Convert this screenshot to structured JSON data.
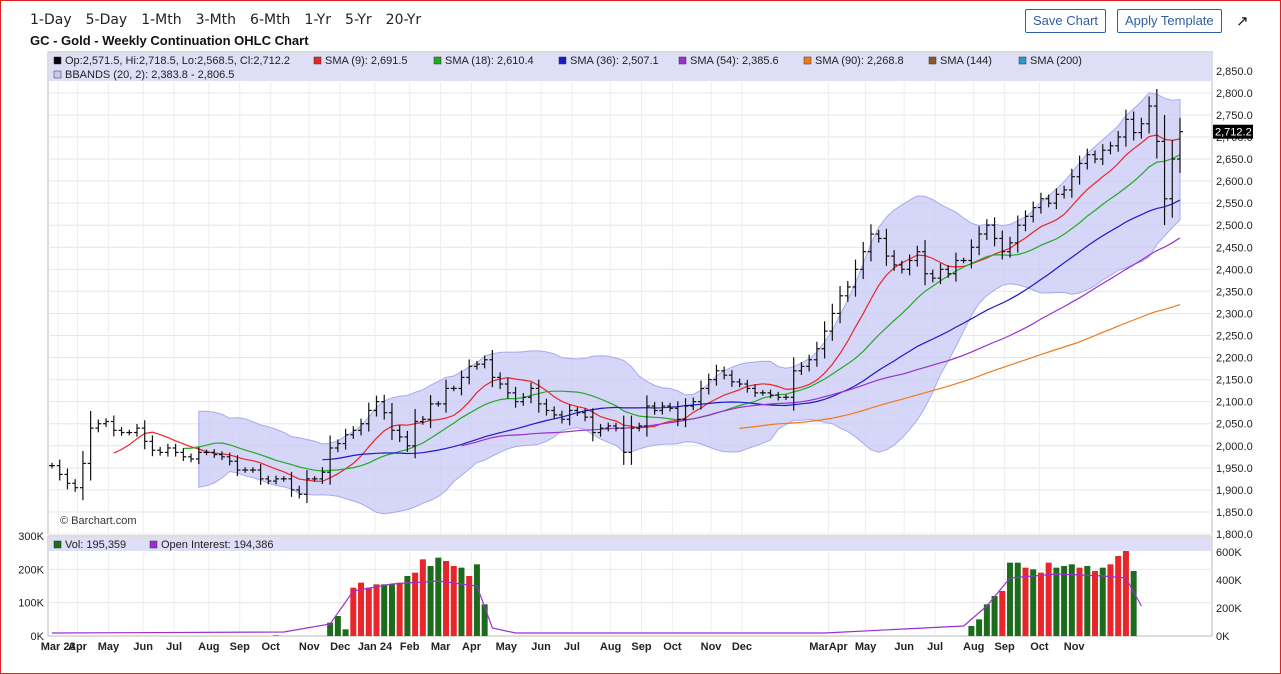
{
  "toolbar": {
    "timeframes": [
      "1-Day",
      "5-Day",
      "1-Mth",
      "3-Mth",
      "6-Mth",
      "1-Yr",
      "5-Yr",
      "20-Yr"
    ],
    "save_chart": "Save Chart",
    "apply_template": "Apply Template"
  },
  "title": "GC - Gold - Weekly Continuation OHLC Chart",
  "watermark": "© Barchart.com",
  "legend": [
    {
      "label": "Op:2,571.5, Hi:2,718.5, Lo:2,568.5, Cl:2,712.2",
      "color": "#000000"
    },
    {
      "label": "SMA (9): 2,691.5",
      "color": "#e8262a"
    },
    {
      "label": "SMA (18): 2,610.4",
      "color": "#22aa22"
    },
    {
      "label": "SMA (36): 2,507.1",
      "color": "#1a1acc"
    },
    {
      "label": "SMA (54): 2,385.6",
      "color": "#9b2fd1"
    },
    {
      "label": "SMA (90): 2,268.8",
      "color": "#f07a1a"
    },
    {
      "label": "SMA (144)",
      "color": "#8b5a2b"
    },
    {
      "label": "SMA (200)",
      "color": "#2a9ad0"
    },
    {
      "label": "BBANDS (20, 2): 2,383.8 - 2,806.5",
      "color": "#c8c8f5"
    }
  ],
  "volume_legend": [
    {
      "label": "Vol: 195,359",
      "color": "#1d6b1d"
    },
    {
      "label": "Open Interest: 194,386",
      "color": "#9b2fd1"
    }
  ],
  "last_price_label": "2,712.2",
  "chart_data": {
    "type": "ohlc",
    "ylim": [
      1800,
      2870
    ],
    "yticks": [
      "1,800.0",
      "1,850.0",
      "1,900.0",
      "1,950.0",
      "2,000.0",
      "2,050.0",
      "2,100.0",
      "2,150.0",
      "2,200.0",
      "2,250.0",
      "2,300.0",
      "2,350.0",
      "2,400.0",
      "2,450.0",
      "2,500.0",
      "2,550.0",
      "2,600.0",
      "2,650.0",
      "2,700.0",
      "2,750.0",
      "2,800.0",
      "2,850.0"
    ],
    "xticks": [
      {
        "label": "Mar 23",
        "week": 0.8
      },
      {
        "label": "Apr",
        "week": 3.3
      },
      {
        "label": "May",
        "week": 7.3
      },
      {
        "label": "Jun",
        "week": 11.8
      },
      {
        "label": "Jul",
        "week": 15.8
      },
      {
        "label": "Aug",
        "week": 20.3
      },
      {
        "label": "Sep",
        "week": 24.3
      },
      {
        "label": "Oct",
        "week": 28.3
      },
      {
        "label": "Nov",
        "week": 33.3
      },
      {
        "label": "Dec",
        "week": 37.3
      },
      {
        "label": "Jan 24",
        "week": 41.8
      },
      {
        "label": "Feb",
        "week": 46.3
      },
      {
        "label": "Mar",
        "week": 50.3
      },
      {
        "label": "Apr",
        "week": 54.3
      },
      {
        "label": "May",
        "week": 58.8
      },
      {
        "label": "Jun",
        "week": 63.3
      },
      {
        "label": "Jul",
        "week": 67.3
      },
      {
        "label": "Aug",
        "week": 72.3
      },
      {
        "label": "Sep",
        "week": 76.3
      },
      {
        "label": "Oct",
        "week": 80.3
      },
      {
        "label": "Nov",
        "week": 85.3
      },
      {
        "label": "Dec",
        "week": 89.3
      },
      {
        "label": "MarApr",
        "week": 100.5
      },
      {
        "label": "May",
        "week": 105.3
      },
      {
        "label": "Jun",
        "week": 110.3
      },
      {
        "label": "Jul",
        "week": 114.3
      },
      {
        "label": "Aug",
        "week": 119.3
      },
      {
        "label": "Sep",
        "week": 123.3
      },
      {
        "label": "Oct",
        "week": 127.8
      },
      {
        "label": "Nov",
        "week": 132.3
      }
    ],
    "closes": [
      1955,
      1935,
      1915,
      1905,
      1960,
      2040,
      2050,
      2055,
      2035,
      2030,
      2030,
      2040,
      2010,
      1990,
      1985,
      1995,
      1985,
      1975,
      1970,
      1985,
      1985,
      1980,
      1975,
      1965,
      1945,
      1945,
      1945,
      1925,
      1920,
      1925,
      1925,
      1900,
      1890,
      1925,
      1925,
      1940,
      1995,
      2005,
      2025,
      2035,
      2050,
      2080,
      2100,
      2075,
      2035,
      2020,
      2000,
      2055,
      2060,
      2095,
      2095,
      2130,
      2130,
      2155,
      2180,
      2185,
      2195,
      2155,
      2140,
      2120,
      2100,
      2110,
      2130,
      2095,
      2080,
      2070,
      2060,
      2080,
      2075,
      2065,
      2030,
      2040,
      2045,
      2040,
      1985,
      2040,
      2045,
      2090,
      2080,
      2090,
      2085,
      2060,
      2090,
      2100,
      2130,
      2150,
      2170,
      2160,
      2145,
      2140,
      2130,
      2120,
      2120,
      2115,
      2110,
      2110,
      2170,
      2180,
      2195,
      2220,
      2260,
      2300,
      2340,
      2360,
      2400,
      2440,
      2480,
      2470,
      2430,
      2410,
      2400,
      2420,
      2440,
      2390,
      2380,
      2400,
      2390,
      2420,
      2420,
      2450,
      2480,
      2500,
      2470,
      2440,
      2460,
      2500,
      2520,
      2540,
      2560,
      2550,
      2570,
      2580,
      2610,
      2640,
      2660,
      2650,
      2670,
      2680,
      2700,
      2740,
      2710,
      2730,
      2770,
      2690,
      2560,
      2650,
      2712
    ],
    "x_labels_note": "weekly bars",
    "volume": {
      "ylim_left": [
        0,
        300000
      ],
      "yticks_left": [
        "0K",
        "100K",
        "200K",
        "300K"
      ],
      "yticks_right": [
        "0K",
        "200K",
        "400K",
        "600K"
      ],
      "bars": [
        {
          "week": 29,
          "v": 2000,
          "color": "#e8262a"
        },
        {
          "week": 36,
          "v": 40000,
          "color": "#1d6b1d"
        },
        {
          "week": 37,
          "v": 60000,
          "color": "#1d6b1d"
        },
        {
          "week": 38,
          "v": 20000,
          "color": "#1d6b1d"
        },
        {
          "week": 39,
          "v": 145000,
          "color": "#e8262a"
        },
        {
          "week": 40,
          "v": 160000,
          "color": "#e8262a"
        },
        {
          "week": 41,
          "v": 145000,
          "color": "#e8262a"
        },
        {
          "week": 42,
          "v": 155000,
          "color": "#e8262a"
        },
        {
          "week": 43,
          "v": 155000,
          "color": "#1d6b1d"
        },
        {
          "week": 44,
          "v": 155000,
          "color": "#1d6b1d"
        },
        {
          "week": 45,
          "v": 160000,
          "color": "#e8262a"
        },
        {
          "week": 46,
          "v": 180000,
          "color": "#1d6b1d"
        },
        {
          "week": 47,
          "v": 190000,
          "color": "#e8262a"
        },
        {
          "week": 48,
          "v": 230000,
          "color": "#e8262a"
        },
        {
          "week": 49,
          "v": 210000,
          "color": "#1d6b1d"
        },
        {
          "week": 50,
          "v": 235000,
          "color": "#1d6b1d"
        },
        {
          "week": 51,
          "v": 225000,
          "color": "#e8262a"
        },
        {
          "week": 52,
          "v": 210000,
          "color": "#e8262a"
        },
        {
          "week": 53,
          "v": 205000,
          "color": "#1d6b1d"
        },
        {
          "week": 54,
          "v": 180000,
          "color": "#e8262a"
        },
        {
          "week": 55,
          "v": 215000,
          "color": "#1d6b1d"
        },
        {
          "week": 56,
          "v": 95000,
          "color": "#1d6b1d"
        },
        {
          "week": 119,
          "v": 30000,
          "color": "#1d6b1d"
        },
        {
          "week": 120,
          "v": 50000,
          "color": "#1d6b1d"
        },
        {
          "week": 121,
          "v": 95000,
          "color": "#1d6b1d"
        },
        {
          "week": 122,
          "v": 120000,
          "color": "#1d6b1d"
        },
        {
          "week": 123,
          "v": 135000,
          "color": "#e8262a"
        },
        {
          "week": 124,
          "v": 220000,
          "color": "#1d6b1d"
        },
        {
          "week": 125,
          "v": 220000,
          "color": "#1d6b1d"
        },
        {
          "week": 126,
          "v": 205000,
          "color": "#e8262a"
        },
        {
          "week": 127,
          "v": 200000,
          "color": "#1d6b1d"
        },
        {
          "week": 128,
          "v": 190000,
          "color": "#e8262a"
        },
        {
          "week": 129,
          "v": 220000,
          "color": "#e8262a"
        },
        {
          "week": 130,
          "v": 205000,
          "color": "#1d6b1d"
        },
        {
          "week": 131,
          "v": 210000,
          "color": "#1d6b1d"
        },
        {
          "week": 132,
          "v": 215000,
          "color": "#1d6b1d"
        },
        {
          "week": 133,
          "v": 205000,
          "color": "#e8262a"
        },
        {
          "week": 134,
          "v": 210000,
          "color": "#1d6b1d"
        },
        {
          "week": 135,
          "v": 195000,
          "color": "#e8262a"
        },
        {
          "week": 136,
          "v": 205000,
          "color": "#1d6b1d"
        },
        {
          "week": 137,
          "v": 215000,
          "color": "#e8262a"
        },
        {
          "week": 138,
          "v": 240000,
          "color": "#e8262a"
        },
        {
          "week": 139,
          "v": 255000,
          "color": "#e8262a"
        },
        {
          "week": 140,
          "v": 195000,
          "color": "#1d6b1d"
        }
      ]
    }
  }
}
